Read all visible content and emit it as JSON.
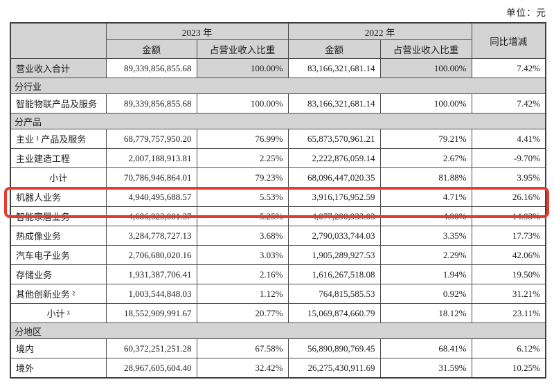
{
  "unit_label": "单位：元",
  "colors": {
    "highlight_red": "#e63a2c",
    "header_gray": "#d4d4d4"
  },
  "table": {
    "header": {
      "year_2023": "2023 年",
      "year_2022": "2022 年",
      "amount_2023": "金额",
      "pct_2023": "占营业收入比重",
      "amount_2022": "金额",
      "pct_2022": "占营业收入比重",
      "yoy_change": "同比增减"
    },
    "rows": [
      {
        "type": "data",
        "label": "营业收入合计",
        "amt2023": "89,339,856,855.68",
        "pct2023": "100.00%",
        "amt2022": "83,166,321,681.14",
        "pct2022": "100.00%",
        "yoy": "7.42%",
        "shaded": true
      },
      {
        "type": "section",
        "label": "分行业"
      },
      {
        "type": "data",
        "label": "智能物联产品及服务",
        "amt2023": "89,339,856,855.68",
        "pct2023": "100.00%",
        "amt2022": "83,166,321,681.14",
        "pct2022": "100.00%",
        "yoy": "7.42%"
      },
      {
        "type": "section",
        "label": "分产品"
      },
      {
        "type": "data",
        "label": "主业 ¹ 产品及服务",
        "amt2023": "68,779,757,950.20",
        "pct2023": "76.99%",
        "amt2022": "65,873,570,961.21",
        "pct2022": "79.21%",
        "yoy": "4.41%"
      },
      {
        "type": "data",
        "label": "主业建造工程",
        "amt2023": "2,007,188,913.81",
        "pct2023": "2.25%",
        "amt2022": "2,222,876,059.14",
        "pct2022": "2.67%",
        "yoy": "-9.70%"
      },
      {
        "type": "data",
        "label": "小计",
        "label_align": "center",
        "amt2023": "70,786,946,864.01",
        "pct2023": "79.23%",
        "amt2022": "68,096,447,020.35",
        "pct2022": "81.88%",
        "yoy": "3.95%"
      },
      {
        "type": "data",
        "label": "机器人业务",
        "amt2023": "4,940,495,688.57",
        "pct2023": "5.53%",
        "amt2022": "3,916,176,952.59",
        "pct2022": "4.71%",
        "yoy": "26.16%",
        "highlight": true
      },
      {
        "type": "data",
        "label": "智能家居业务",
        "amt2023": "4,686,023,001.37",
        "pct2023": "5.25%",
        "amt2022": "4,077,290,933.03",
        "pct2022": "4.90%",
        "yoy": "14.93%"
      },
      {
        "type": "data",
        "label": "热成像业务",
        "amt2023": "3,284,778,727.13",
        "pct2023": "3.68%",
        "amt2022": "2,790,033,744.03",
        "pct2022": "3.35%",
        "yoy": "17.73%"
      },
      {
        "type": "data",
        "label": "汽车电子业务",
        "amt2023": "2,706,680,020.16",
        "pct2023": "3.03%",
        "amt2022": "1,905,289,927.53",
        "pct2022": "2.29%",
        "yoy": "42.06%"
      },
      {
        "type": "data",
        "label": "存储业务",
        "amt2023": "1,931,387,706.41",
        "pct2023": "2.16%",
        "amt2022": "1,616,267,518.08",
        "pct2022": "1.94%",
        "yoy": "19.50%"
      },
      {
        "type": "data",
        "label": "其他创新业务 ²",
        "amt2023": "1,003,544,848.03",
        "pct2023": "1.12%",
        "amt2022": "764,815,585.53",
        "pct2022": "0.92%",
        "yoy": "31.21%"
      },
      {
        "type": "data",
        "label": "小计 ³",
        "label_align": "center",
        "amt2023": "18,552,909,991.67",
        "pct2023": "20.77%",
        "amt2022": "15,069,874,660.79",
        "pct2022": "18.12%",
        "yoy": "23.11%"
      },
      {
        "type": "section",
        "label": "分地区"
      },
      {
        "type": "data",
        "label": "境内",
        "amt2023": "60,372,251,251.28",
        "pct2023": "67.58%",
        "amt2022": "56,890,890,769.45",
        "pct2022": "68.41%",
        "yoy": "6.12%"
      },
      {
        "type": "data",
        "label": "境外",
        "amt2023": "28,967,605,604.40",
        "pct2023": "32.42%",
        "amt2022": "26,275,430,911.69",
        "pct2022": "31.59%",
        "yoy": "10.25%"
      }
    ]
  },
  "highlight": {
    "row_label": "机器人业务"
  }
}
